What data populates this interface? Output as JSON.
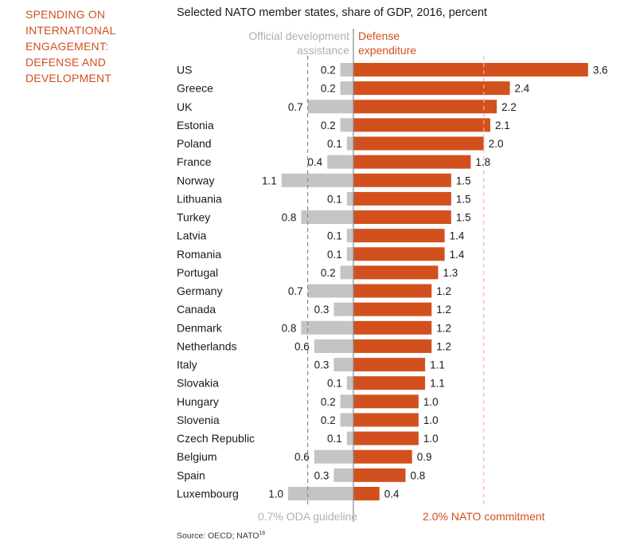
{
  "side_title": "SPENDING ON\nINTERNATIONAL\nENGAGEMENT:\nDEFENSE AND\nDEVELOPMENT",
  "source": {
    "text": "Source: OECD; NATO",
    "ref": "16"
  },
  "colors": {
    "defense": "#d2501e",
    "oda": "#c4c4c4",
    "guideline_text": "#b0b0b0",
    "accent_text": "#d2501e"
  },
  "chart_data": {
    "type": "bar",
    "orientation": "diverging-horizontal",
    "subtitle": "Selected NATO member states, share of GDP, 2016, percent",
    "categories": [
      "US",
      "Greece",
      "UK",
      "Estonia",
      "Poland",
      "France",
      "Norway",
      "Lithuania",
      "Turkey",
      "Latvia",
      "Romania",
      "Portugal",
      "Germany",
      "Canada",
      "Denmark",
      "Netherlands",
      "Italy",
      "Slovakia",
      "Hungary",
      "Slovenia",
      "Czech Republic",
      "Belgium",
      "Spain",
      "Luxembourg"
    ],
    "series": [
      {
        "name": "Official development assistance",
        "side": "left",
        "values": [
          0.2,
          0.2,
          0.7,
          0.2,
          0.1,
          0.4,
          1.1,
          0.1,
          0.8,
          0.1,
          0.1,
          0.2,
          0.7,
          0.3,
          0.8,
          0.6,
          0.3,
          0.1,
          0.2,
          0.2,
          0.1,
          0.6,
          0.3,
          1.0
        ]
      },
      {
        "name": "Defense expenditure",
        "side": "right",
        "values": [
          3.6,
          2.4,
          2.2,
          2.1,
          2.0,
          1.8,
          1.5,
          1.5,
          1.5,
          1.4,
          1.4,
          1.3,
          1.2,
          1.2,
          1.2,
          1.2,
          1.1,
          1.1,
          1.0,
          1.0,
          1.0,
          0.9,
          0.8,
          0.4
        ]
      }
    ],
    "reference_lines": [
      {
        "side": "left",
        "value": 0.7,
        "label": "0.7% ODA guideline"
      },
      {
        "side": "right",
        "value": 2.0,
        "label": "2.0% NATO commitment"
      }
    ]
  }
}
